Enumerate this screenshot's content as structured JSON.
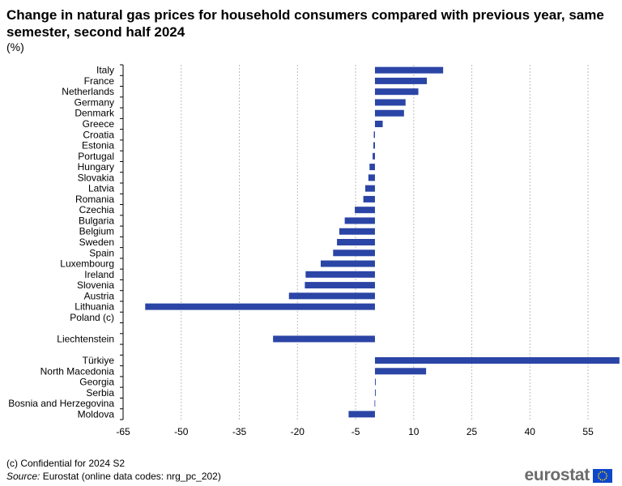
{
  "header": {
    "title": "Change in natural gas prices for household consumers compared with previous year, same semester, second half 2024",
    "unit": "(%)"
  },
  "footer": {
    "footnote": "(c) Confidential for 2024 S2",
    "source_label": "Source:",
    "source_text": " Eurostat (online data codes: nrg_pc_202)",
    "logo_text": "eurostat"
  },
  "colors": {
    "bar": "#2b45a6",
    "grid": "#bdbdbd",
    "flag": "#0e47cb",
    "stars": "#ffd200"
  },
  "chart_data": {
    "type": "bar",
    "orientation": "horizontal",
    "title": "Change in natural gas prices for household consumers compared with previous year, same semester, second half 2024",
    "xlim": [
      -65,
      60
    ],
    "xticks": [
      -65,
      -50,
      -35,
      -20,
      -5,
      10,
      25,
      40,
      55
    ],
    "grid": true,
    "categories": [
      "Italy",
      "France",
      "Netherlands",
      "Germany",
      "Denmark",
      "Greece",
      "Croatia",
      "Estonia",
      "Portugal",
      "Hungary",
      "Slovakia",
      "Latvia",
      "Romania",
      "Czechia",
      "Bulgaria",
      "Belgium",
      "Sweden",
      "Spain",
      "Luxembourg",
      "Ireland",
      "Slovenia",
      "Austria",
      "Lithuania",
      "Poland (c)",
      "",
      "Liechtenstein",
      "",
      "Türkiye",
      "North Macedonia",
      "Georgia",
      "Serbia",
      "Bosnia and Herzegovina",
      "Moldova"
    ],
    "values": [
      17.6,
      13.4,
      11.2,
      7.9,
      7.5,
      2.0,
      -0.3,
      -0.4,
      -0.6,
      -1.4,
      -1.7,
      -2.5,
      -3.0,
      -5.2,
      -7.8,
      -9.2,
      -9.8,
      -10.8,
      -14.0,
      -17.9,
      -18.1,
      -22.2,
      -59.3,
      null,
      null,
      -26.3,
      null,
      63.1,
      13.2,
      0.2,
      0.2,
      -0.1,
      -6.8
    ]
  }
}
